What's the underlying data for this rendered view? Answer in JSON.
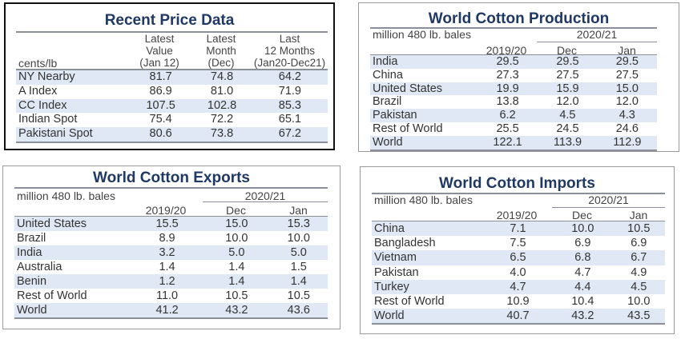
{
  "price": {
    "title": "Recent Price Data",
    "unit": "cents/lb",
    "headers": [
      [
        "Latest",
        "Value",
        "(Jan 12)"
      ],
      [
        "Latest",
        "Month",
        "(Dec)"
      ],
      [
        "Last",
        "12 Months",
        "(Jan20-Dec21)"
      ]
    ],
    "rows": [
      {
        "label": "NY Nearby",
        "values": [
          "81.7",
          "74.8",
          "64.2"
        ]
      },
      {
        "label": "A Index",
        "values": [
          "86.9",
          "81.0",
          "71.9"
        ]
      },
      {
        "label": "CC Index",
        "values": [
          "107.5",
          "102.8",
          "85.3"
        ]
      },
      {
        "label": "Indian Spot",
        "values": [
          "75.4",
          "72.2",
          "65.1"
        ]
      },
      {
        "label": "Pakistani Spot",
        "values": [
          "80.6",
          "73.8",
          "67.2"
        ]
      }
    ]
  },
  "production": {
    "title": "World Cotton Production",
    "unit": "million 480 lb. bales",
    "season": "2020/21",
    "columns": [
      "2019/20",
      "Dec",
      "Jan"
    ],
    "rows": [
      {
        "label": "India",
        "values": [
          "29.5",
          "29.5",
          "29.5"
        ]
      },
      {
        "label": "China",
        "values": [
          "27.3",
          "27.5",
          "27.5"
        ]
      },
      {
        "label": "United States",
        "values": [
          "19.9",
          "15.9",
          "15.0"
        ]
      },
      {
        "label": "Brazil",
        "values": [
          "13.8",
          "12.0",
          "12.0"
        ]
      },
      {
        "label": "Pakistan",
        "values": [
          "6.2",
          "4.5",
          "4.3"
        ]
      },
      {
        "label": "Rest of World",
        "values": [
          "25.5",
          "24.5",
          "24.6"
        ]
      },
      {
        "label": "World",
        "values": [
          "122.1",
          "113.9",
          "112.9"
        ]
      }
    ]
  },
  "exports": {
    "title": "World Cotton Exports",
    "unit": "million 480 lb. bales",
    "season": "2020/21",
    "columns": [
      "2019/20",
      "Dec",
      "Jan"
    ],
    "rows": [
      {
        "label": "United States",
        "values": [
          "15.5",
          "15.0",
          "15.3"
        ]
      },
      {
        "label": "Brazil",
        "values": [
          "8.9",
          "10.0",
          "10.0"
        ]
      },
      {
        "label": "India",
        "values": [
          "3.2",
          "5.0",
          "5.0"
        ]
      },
      {
        "label": "Australia",
        "values": [
          "1.4",
          "1.4",
          "1.5"
        ]
      },
      {
        "label": "Benin",
        "values": [
          "1.2",
          "1.4",
          "1.4"
        ]
      },
      {
        "label": "Rest of World",
        "values": [
          "11.0",
          "10.5",
          "10.5"
        ]
      },
      {
        "label": "World",
        "values": [
          "41.2",
          "43.2",
          "43.6"
        ]
      }
    ]
  },
  "imports": {
    "title": "World Cotton Imports",
    "unit": "million 480 lb. bales",
    "season": "2020/21",
    "columns": [
      "2019/20",
      "Dec",
      "Jan"
    ],
    "rows": [
      {
        "label": "China",
        "values": [
          "7.1",
          "10.0",
          "10.5"
        ]
      },
      {
        "label": "Bangladesh",
        "values": [
          "7.5",
          "6.9",
          "6.9"
        ]
      },
      {
        "label": "Vietnam",
        "values": [
          "6.5",
          "6.8",
          "6.7"
        ]
      },
      {
        "label": "Pakistan",
        "values": [
          "4.0",
          "4.7",
          "4.9"
        ]
      },
      {
        "label": "Turkey",
        "values": [
          "4.7",
          "4.4",
          "4.5"
        ]
      },
      {
        "label": "Rest of World",
        "values": [
          "10.9",
          "10.4",
          "10.0"
        ]
      },
      {
        "label": "World",
        "values": [
          "40.7",
          "43.2",
          "43.5"
        ]
      }
    ]
  }
}
